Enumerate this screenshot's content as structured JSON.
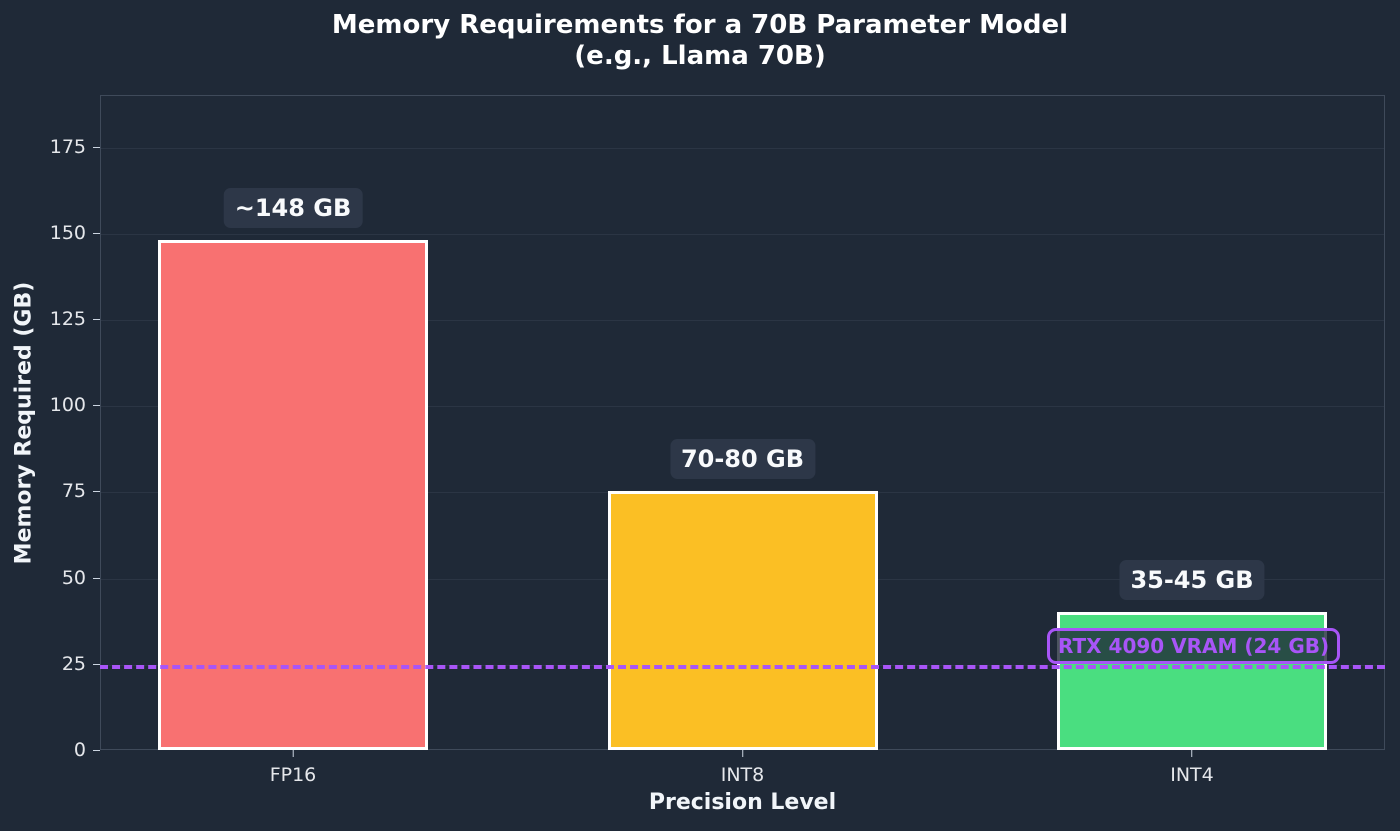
{
  "chart_data": {
    "type": "bar",
    "title": "Memory Requirements for a 70B Parameter Model",
    "subtitle": "(e.g., Llama 70B)",
    "xlabel": "Precision Level",
    "ylabel": "Memory Required (GB)",
    "categories": [
      "FP16",
      "INT8",
      "INT4"
    ],
    "values": [
      148,
      75,
      40
    ],
    "value_labels": [
      "~148 GB",
      "70-80 GB",
      "35-45 GB"
    ],
    "colors": [
      "#f87171",
      "#fbbf24",
      "#4ade80"
    ],
    "ylim": [
      0,
      190
    ],
    "yticks": [
      0,
      25,
      50,
      75,
      100,
      125,
      150,
      175
    ],
    "grid": true,
    "reference_line": {
      "value": 24,
      "label": "RTX 4090 VRAM (24 GB)",
      "color": "#a855f7",
      "style": "dashed"
    }
  },
  "theme": {
    "background": "#1f2937",
    "label_box": "#2d3748"
  }
}
